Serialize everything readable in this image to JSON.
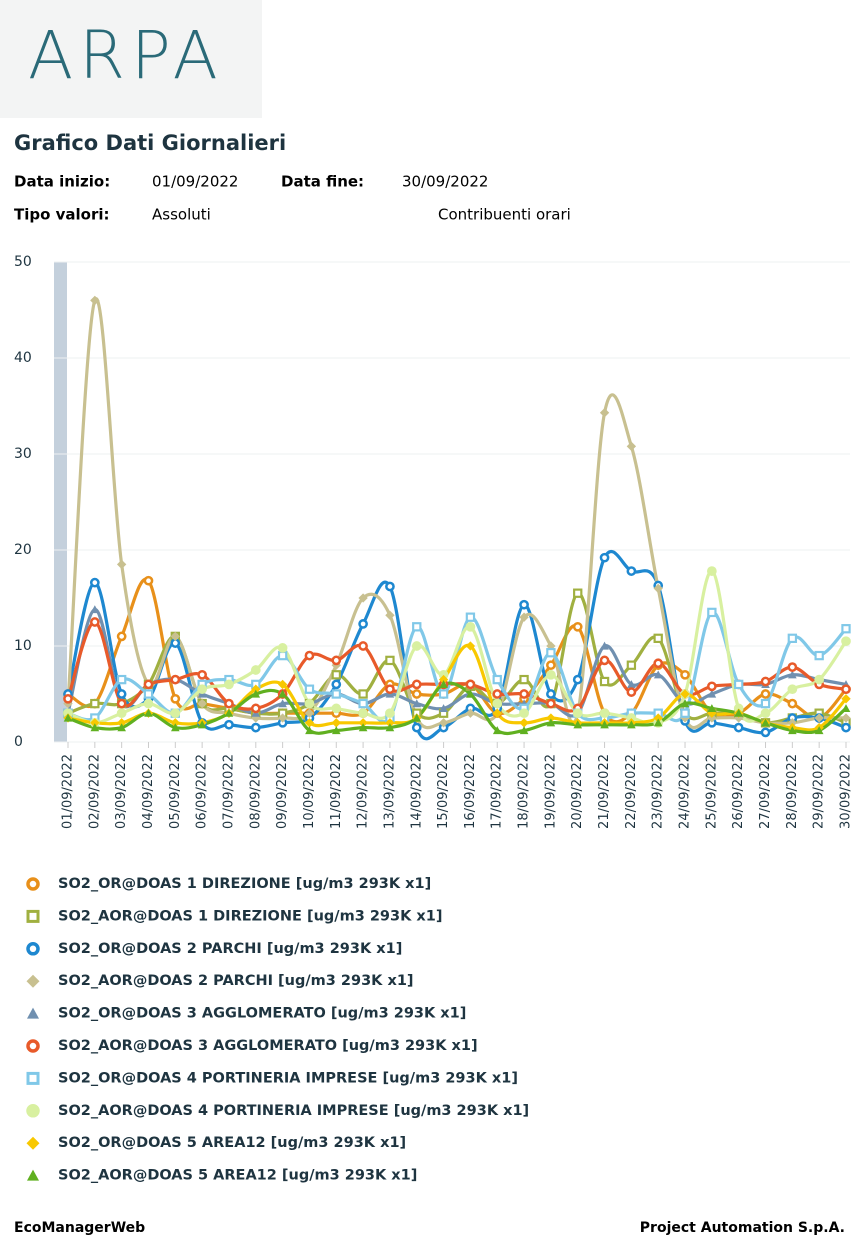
{
  "header": {
    "logo": "ARPA",
    "title": "Grafico Dati Giornalieri",
    "fields": [
      {
        "label": "Data inizio:",
        "value": "01/09/2022"
      },
      {
        "label": "Data fine:",
        "value": "30/09/2022"
      },
      {
        "label": "Tipo valori:",
        "value": "Assoluti"
      }
    ],
    "extra": "Contribuenti orari"
  },
  "chart_data": {
    "type": "line",
    "categories": [
      "01/09/2022",
      "02/09/2022",
      "03/09/2022",
      "04/09/2022",
      "05/09/2022",
      "06/09/2022",
      "07/09/2022",
      "08/09/2022",
      "09/09/2022",
      "10/09/2022",
      "11/09/2022",
      "12/09/2022",
      "13/09/2022",
      "14/09/2022",
      "15/09/2022",
      "16/09/2022",
      "17/09/2022",
      "18/09/2022",
      "19/09/2022",
      "20/09/2022",
      "21/09/2022",
      "22/09/2022",
      "23/09/2022",
      "24/09/2022",
      "25/09/2022",
      "26/09/2022",
      "27/09/2022",
      "28/09/2022",
      "29/09/2022",
      "30/09/2022"
    ],
    "ylim": [
      0,
      50
    ],
    "yticks": [
      0,
      10,
      20,
      30,
      40,
      50
    ],
    "grid": true,
    "series": [
      {
        "name": "SO2_OR@DOAS 1 DIREZIONE [ug/m3 293K x1]",
        "color": "#e8901a",
        "marker": "circle-open",
        "values": [
          5,
          4,
          11,
          16.8,
          4.5,
          4,
          3.5,
          3,
          3,
          3,
          3,
          3,
          6,
          5,
          5,
          6,
          3,
          4.5,
          8,
          12,
          3,
          3,
          8,
          7,
          3,
          3,
          5,
          4,
          2.5,
          5.5
        ]
      },
      {
        "name": "SO2_AOR@DOAS 1 DIREZIONE [ug/m3 293K x1]",
        "color": "#a0b040",
        "marker": "square-open",
        "values": [
          3,
          4,
          4,
          6,
          11,
          4,
          3.5,
          3,
          3,
          4,
          7,
          5,
          8.5,
          3,
          3,
          5.8,
          4,
          6.5,
          4,
          15.5,
          6.3,
          8,
          10.8,
          3,
          3,
          3,
          2,
          2.5,
          3,
          2
        ]
      },
      {
        "name": "SO2_OR@DOAS 2 PARCHI [ug/m3 293K x1]",
        "color": "#1e88d0",
        "marker": "circle-open",
        "values": [
          5,
          16.6,
          5,
          4.5,
          10.3,
          2,
          1.8,
          1.5,
          2,
          2.5,
          6,
          12.3,
          16.2,
          1.5,
          1.5,
          3.5,
          3.5,
          14.3,
          5,
          6.5,
          19.2,
          17.8,
          16.3,
          2.2,
          2,
          1.5,
          1,
          2.5,
          2.5,
          1.5
        ]
      },
      {
        "name": "SO2_AOR@DOAS 2 PARCHI [ug/m3 293K x1]",
        "color": "#c8c090",
        "marker": "diamond",
        "values": [
          4,
          46,
          18.5,
          6,
          11,
          4,
          3,
          2.5,
          2.5,
          3,
          8,
          15,
          13.2,
          2.5,
          2,
          3,
          3,
          13,
          10,
          3,
          34.3,
          30.8,
          16,
          2.5,
          2.5,
          2.5,
          2,
          2,
          2.5,
          2.5
        ]
      },
      {
        "name": "SO2_OR@DOAS 3 AGGLOMERATO [ug/m3 293K x1]",
        "color": "#7090b0",
        "marker": "triangle",
        "values": [
          3,
          13.8,
          4,
          6,
          6.5,
          5,
          4,
          3,
          4,
          4,
          5,
          4,
          5,
          4,
          3.5,
          5,
          4,
          4,
          4,
          3,
          10,
          6,
          7,
          4,
          5,
          6,
          6,
          7,
          6.5,
          6
        ]
      },
      {
        "name": "SO2_AOR@DOAS 3 AGGLOMERATO [ug/m3 293K x1]",
        "color": "#e85a2a",
        "marker": "circle-open",
        "values": [
          4.5,
          12.5,
          4,
          6,
          6.5,
          7,
          4,
          3.5,
          5,
          9,
          8.5,
          10,
          5.5,
          6,
          6,
          6,
          5,
          5,
          4,
          3.5,
          8.5,
          5.2,
          8.2,
          5,
          5.8,
          6,
          6.3,
          7.8,
          6,
          5.5
        ]
      },
      {
        "name": "SO2_OR@DOAS 4 PORTINERIA IMPRESE [ug/m3 293K x1]",
        "color": "#80c8e8",
        "marker": "square-open",
        "values": [
          3,
          2.5,
          6.5,
          5,
          3,
          6,
          6.5,
          6,
          9,
          5.5,
          5,
          4,
          2.5,
          12,
          5,
          13,
          6.5,
          3.5,
          9.3,
          3,
          2.5,
          3,
          3,
          3,
          13.5,
          6,
          4,
          10.8,
          9,
          11.8
        ]
      },
      {
        "name": "SO2_AOR@DOAS 4 PORTINERIA IMPRESE [ug/m3 293K x1]",
        "color": "#d8f0a0",
        "marker": "circle",
        "values": [
          3,
          2,
          3,
          4,
          3,
          5.5,
          6,
          7.5,
          9.8,
          4,
          3.5,
          3,
          3,
          10,
          7,
          12,
          4,
          3,
          7,
          3,
          3,
          2.5,
          2,
          5,
          17.8,
          3.5,
          3,
          5.5,
          6.5,
          10.5
        ]
      },
      {
        "name": "SO2_OR@DOAS 5 AREA12 [ug/m3 293K x1]",
        "color": "#f8c800",
        "marker": "diamond",
        "values": [
          2.5,
          2,
          2,
          3,
          2,
          2,
          3,
          5.5,
          6,
          2,
          2,
          2,
          2,
          2.5,
          6.5,
          10,
          3,
          2,
          2.5,
          2,
          2,
          2,
          2.5,
          5,
          3,
          3,
          2,
          1.5,
          1.5,
          4.5
        ]
      },
      {
        "name": "SO2_AOR@DOAS 5 AREA12 [ug/m3 293K x1]",
        "color": "#60b020",
        "marker": "triangle",
        "values": [
          2.5,
          1.5,
          1.5,
          3,
          1.5,
          1.8,
          3,
          5,
          5,
          1.2,
          1.2,
          1.5,
          1.5,
          2.5,
          6,
          5,
          1.2,
          1.2,
          2,
          1.8,
          1.8,
          1.8,
          2,
          4,
          3.5,
          3,
          2,
          1.2,
          1.2,
          3.5
        ]
      }
    ]
  },
  "footer": {
    "left": "EcoManagerWeb",
    "right": "Project Automation S.p.A."
  }
}
